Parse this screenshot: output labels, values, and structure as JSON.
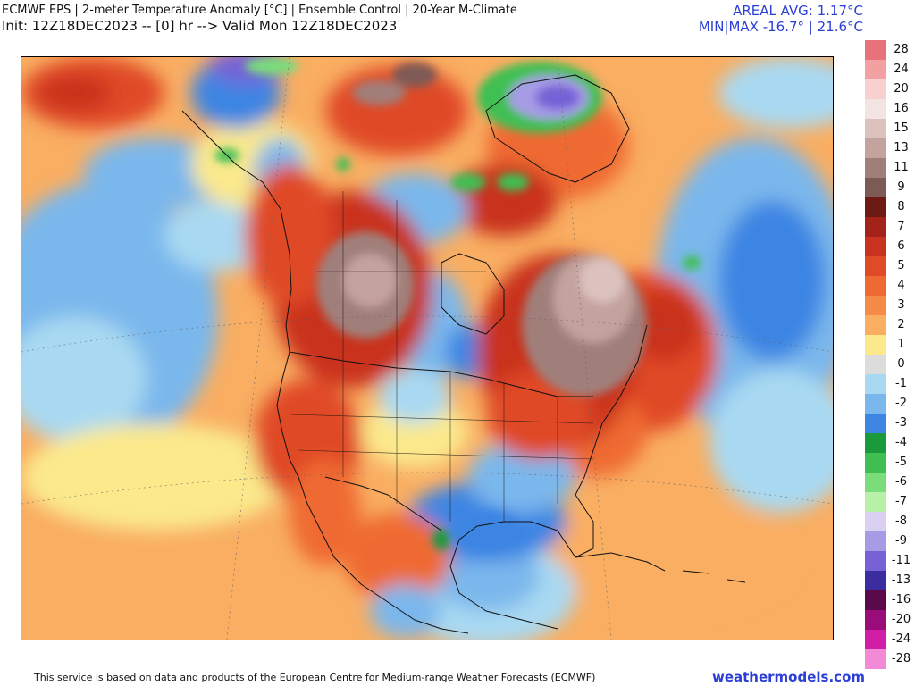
{
  "header": {
    "title_line1": "ECMWF EPS | 2-meter Temperature Anomaly [°C] | Ensemble Control | 20-Year M-Climate",
    "title_line2": "Init: 12Z18DEC2023 -- [0] hr --> Valid Mon 12Z18DEC2023",
    "areal_avg": "AREAL AVG: 1.17°C",
    "min_max": "MIN|MAX -16.7° | 21.6°C"
  },
  "legend": [
    {
      "label": "28",
      "color": "#e8727a"
    },
    {
      "label": "24",
      "color": "#f2a0a2"
    },
    {
      "label": "20",
      "color": "#f9cfcf"
    },
    {
      "label": "16",
      "color": "#f2e4e2"
    },
    {
      "label": "15",
      "color": "#dcc2bf"
    },
    {
      "label": "13",
      "color": "#c4a29e"
    },
    {
      "label": "11",
      "color": "#a07f7a"
    },
    {
      "label": "9",
      "color": "#7d5a56"
    },
    {
      "label": "8",
      "color": "#6e1a14"
    },
    {
      "label": "7",
      "color": "#a3231b"
    },
    {
      "label": "6",
      "color": "#c9321f"
    },
    {
      "label": "5",
      "color": "#e04a26"
    },
    {
      "label": "4",
      "color": "#ef6a33"
    },
    {
      "label": "3",
      "color": "#f58b47"
    },
    {
      "label": "2",
      "color": "#f9ae62"
    },
    {
      "label": "1",
      "color": "#fbe98c"
    },
    {
      "label": "0",
      "color": "#dcdcdc"
    },
    {
      "label": "-1",
      "color": "#a9d9f2"
    },
    {
      "label": "-2",
      "color": "#7ab7ec"
    },
    {
      "label": "-3",
      "color": "#3e85e3"
    },
    {
      "label": "-4",
      "color": "#1a9a3a"
    },
    {
      "label": "-5",
      "color": "#3fbf52"
    },
    {
      "label": "-6",
      "color": "#7bdc7a"
    },
    {
      "label": "-7",
      "color": "#b8f0a8"
    },
    {
      "label": "-8",
      "color": "#d9d0f4"
    },
    {
      "label": "-9",
      "color": "#a79be6"
    },
    {
      "label": "-11",
      "color": "#7662d6"
    },
    {
      "label": "-13",
      "color": "#3b2ca0"
    },
    {
      "label": "-16",
      "color": "#5a0a4a"
    },
    {
      "label": "-20",
      "color": "#990c7a"
    },
    {
      "label": "-24",
      "color": "#d21ea6"
    },
    {
      "label": "-28",
      "color": "#f28ad8"
    }
  ],
  "footer": {
    "attribution": "This service is based on data and products of the European Centre for Medium-range Weather Forecasts (ECMWF)",
    "site": "weathermodels.com"
  }
}
